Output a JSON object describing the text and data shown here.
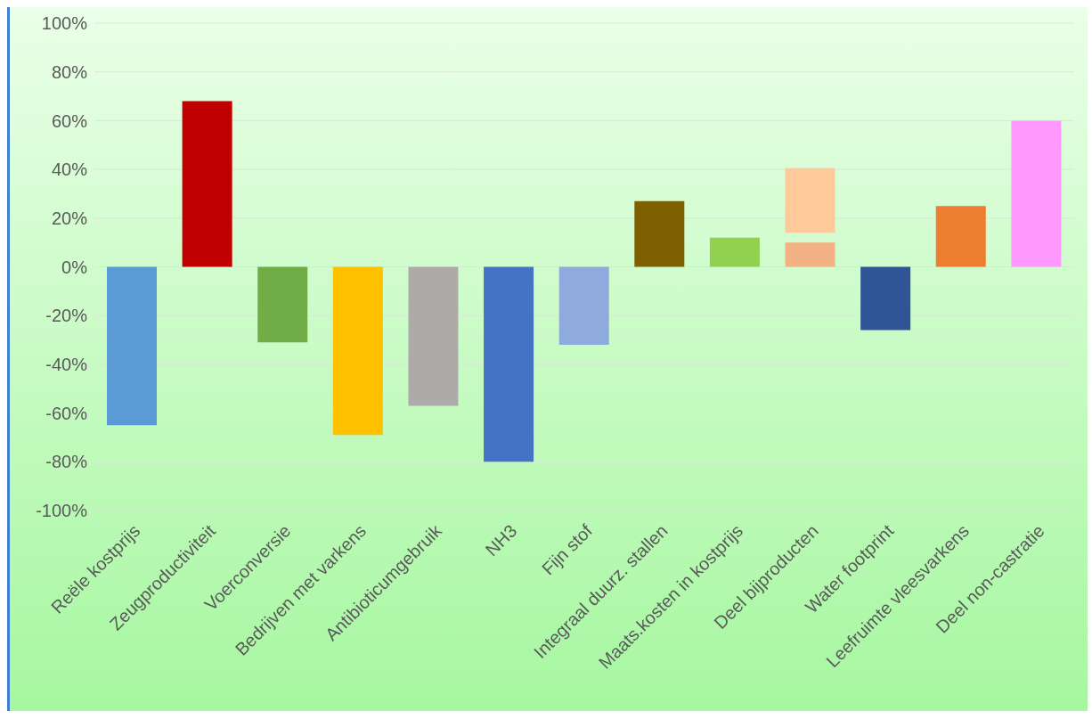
{
  "chart_data": {
    "type": "bar",
    "categories": [
      "Reële kostprijs",
      "Zeugproductiviteit",
      "Voerconversie",
      "Bedrijven met varkens",
      "Antibioticumgebruik",
      "NH3",
      "Fijn stof",
      "Integraal duurz. stallen",
      "Maats.kosten in kostprijs",
      "Deel bijproducten",
      "Water footprint",
      "Leefruimte vleesvarkens",
      "Deel non-castratie"
    ],
    "series": [
      {
        "colors": [
          "#5b9bd5",
          "#c00000",
          "#70ad47",
          "#ffc000",
          "#aeaaaa",
          "#4472c4",
          "#8faadc",
          "#7f6000",
          "#92d050",
          "#f4b183",
          "#2f5597",
          "#ed7d31",
          "#ff99ff"
        ],
        "values": [
          -65,
          68,
          -31,
          -69,
          -57,
          -80,
          -32,
          27,
          12,
          10,
          -26,
          25,
          60
        ]
      },
      {
        "color": "#ffc999",
        "values": [
          null,
          null,
          null,
          null,
          null,
          null,
          null,
          null,
          null,
          26.5,
          null,
          null,
          null
        ],
        "base": [
          null,
          null,
          null,
          null,
          null,
          null,
          null,
          null,
          null,
          14,
          null,
          null,
          null
        ]
      }
    ],
    "ylim": [
      -100,
      100
    ],
    "yticks": [
      {
        "value": -100,
        "label": "-100%"
      },
      {
        "value": -80,
        "label": "-80%"
      },
      {
        "value": -60,
        "label": "-60%"
      },
      {
        "value": -40,
        "label": "-40%"
      },
      {
        "value": -20,
        "label": "-20%"
      },
      {
        "value": 0,
        "label": "0%"
      },
      {
        "value": 20,
        "label": "20%"
      },
      {
        "value": 40,
        "label": "40%"
      },
      {
        "value": 60,
        "label": "60%"
      },
      {
        "value": 80,
        "label": "80%"
      },
      {
        "value": 100,
        "label": "100%"
      }
    ],
    "grid": "y"
  }
}
